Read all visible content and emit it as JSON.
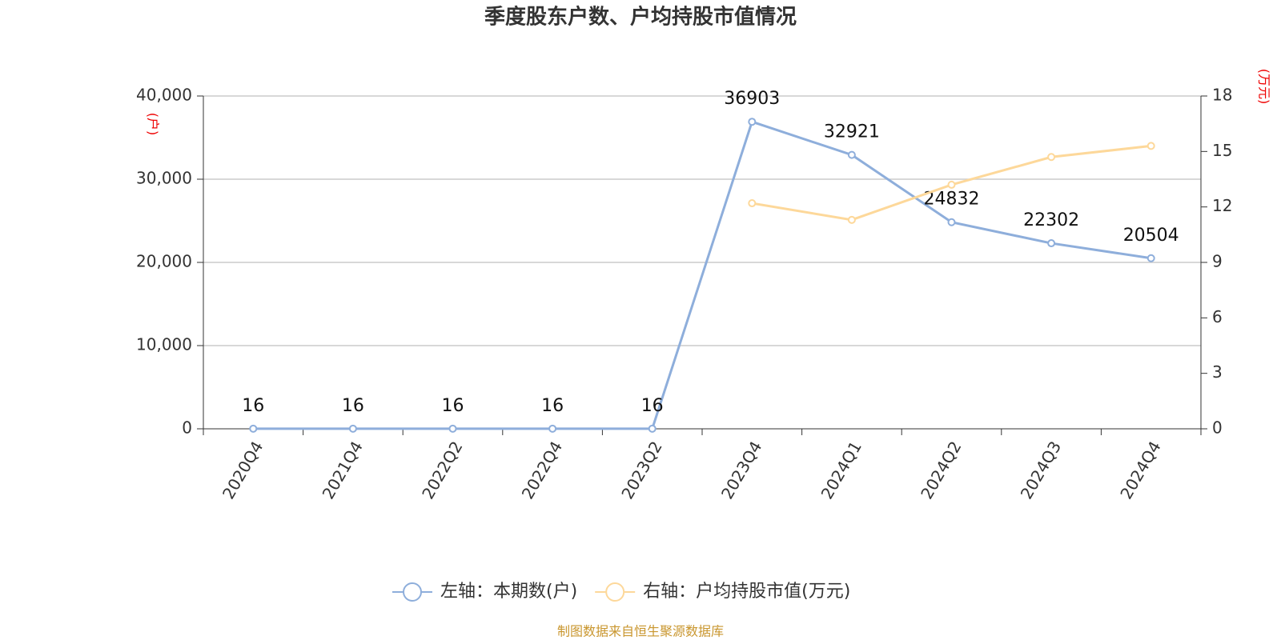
{
  "chart_data": {
    "type": "line",
    "title": "季度股东户数、户均持股市值情况",
    "y_label": "(户)",
    "y2_label": "(万元)",
    "categories": [
      "2020Q4",
      "2021Q4",
      "2022Q2",
      "2022Q4",
      "2023Q2",
      "2023Q4",
      "2024Q1",
      "2024Q2",
      "2024Q3",
      "2024Q4"
    ],
    "series": [
      {
        "name": "左轴：本期数(户)",
        "color": "#8eaedb",
        "values": [
          16,
          16,
          16,
          16,
          16,
          36903,
          32921,
          24832,
          22302,
          20504
        ]
      },
      {
        "name": "右轴：户均持股市值(万元)",
        "color": "#fdd89a",
        "axis": "y2",
        "values": [
          null,
          null,
          null,
          null,
          null,
          12.2,
          11.3,
          13.2,
          14.7,
          15.3
        ]
      }
    ],
    "ylim": [
      0,
      40000
    ],
    "yticks": [
      0,
      {
        "value": 10000,
        "label": "10,000"
      },
      {
        "value": 20000,
        "label": "20,000"
      },
      {
        "value": 30000,
        "label": "30,000"
      },
      {
        "value": 40000,
        "label": "40,000"
      }
    ],
    "y2lim": [
      0,
      18
    ],
    "y2ticks": [
      0,
      3,
      6,
      9,
      12,
      15,
      18
    ],
    "grid": true,
    "source": "制图数据来自恒生聚源数据库"
  }
}
